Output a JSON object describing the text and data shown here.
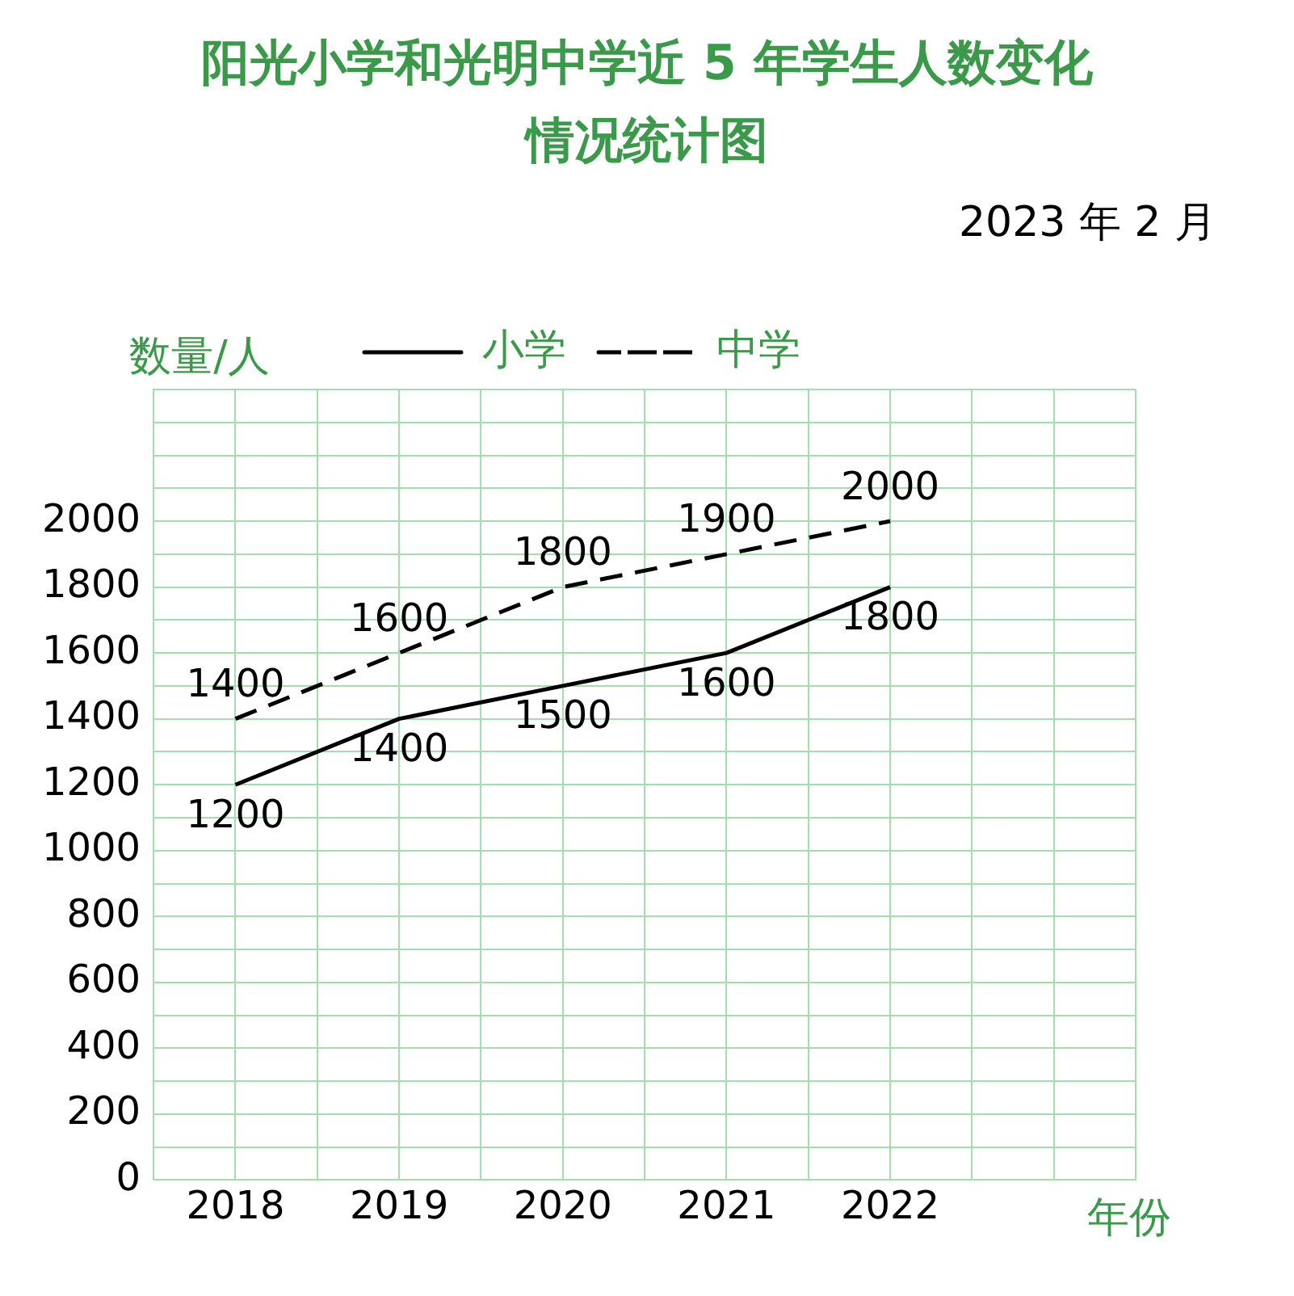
{
  "chart_data": {
    "type": "line",
    "title": "阳光小学和光明中学近 5 年学生人数变化情况统计图",
    "annotations": [
      "2023 年 2 月"
    ],
    "xlabel": "年份",
    "ylabel": "数量/人",
    "x": [
      2018,
      2019,
      2020,
      2021,
      2022
    ],
    "series": [
      {
        "name": "小学",
        "color": "#000000",
        "line_style": "solid",
        "values": [
          1200,
          1400,
          1500,
          1600,
          1800
        ]
      },
      {
        "name": "中学",
        "color": "#000000",
        "line_style": "dashed",
        "values": [
          1400,
          1600,
          1800,
          1900,
          2000
        ]
      }
    ],
    "xlim": [
      2017.5,
      2023.5
    ],
    "xticks": [
      {
        "value": 2017.5,
        "label": null
      },
      2018,
      {
        "value": 2018.5,
        "label": null
      },
      2019,
      {
        "value": 2019.5,
        "label": null
      },
      2020,
      {
        "value": 2020.5,
        "label": null
      },
      2021,
      {
        "value": 2021.5,
        "label": null
      },
      2022,
      {
        "value": 2022.5,
        "label": null
      },
      {
        "value": 2023,
        "label": null
      },
      {
        "value": 2023.5,
        "label": null
      }
    ],
    "ylim": [
      0,
      2400
    ],
    "yticks": [
      0,
      {
        "value": 100,
        "label": null
      },
      200,
      {
        "value": 300,
        "label": null
      },
      400,
      {
        "value": 500,
        "label": null
      },
      600,
      {
        "value": 700,
        "label": null
      },
      800,
      {
        "value": 900,
        "label": null
      },
      1000,
      {
        "value": 1100,
        "label": null
      },
      1200,
      {
        "value": 1300,
        "label": null
      },
      1400,
      {
        "value": 1500,
        "label": null
      },
      1600,
      {
        "value": 1700,
        "label": null
      },
      1800,
      {
        "value": 1900,
        "label": null
      },
      2000,
      {
        "value": 2100,
        "label": null
      },
      {
        "value": 2200,
        "label": null
      },
      {
        "value": 2300,
        "label": null
      },
      {
        "value": 2400,
        "label": null
      }
    ],
    "grid": true,
    "legend": "top",
    "marker": "none",
    "data_labels": true
  }
}
